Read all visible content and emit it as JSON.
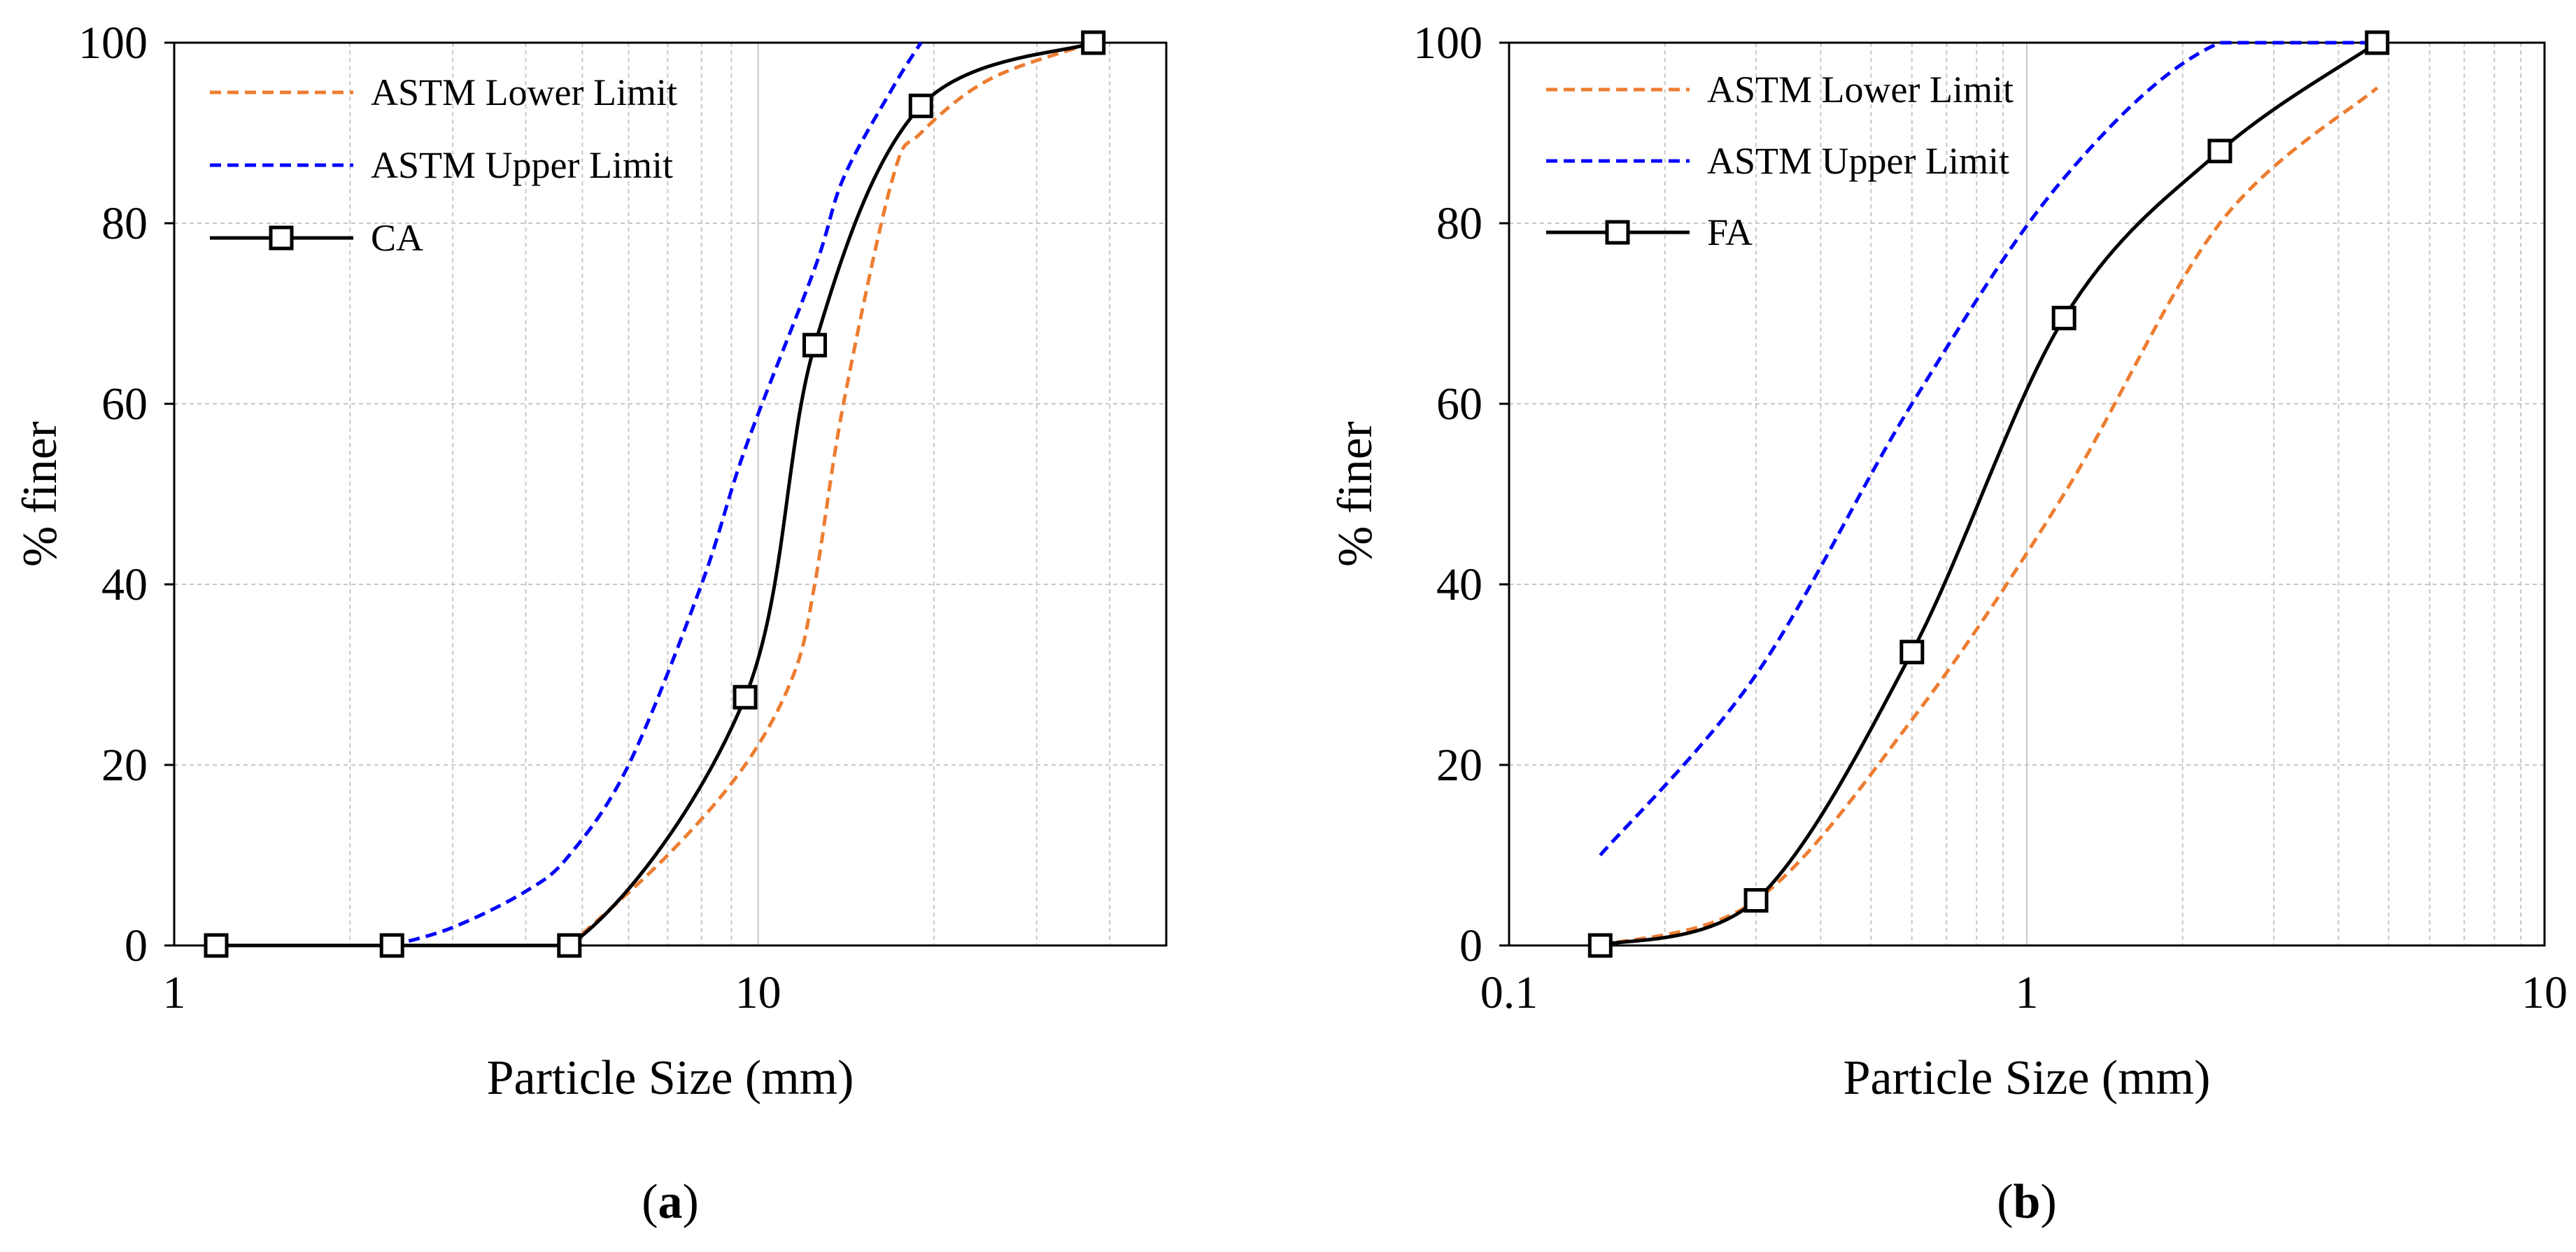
{
  "colors": {
    "lower_limit": "#ED7D31",
    "upper_limit": "#0000FF",
    "measured": "#000000",
    "grid": "#C8C8C8",
    "frame": "#000000"
  },
  "chart_data": [
    {
      "id": "a",
      "type": "line",
      "panel_label": "a",
      "xlabel": "Particle Size (mm)",
      "ylabel": "% finer",
      "xscale": "log",
      "xlim": [
        1,
        50
      ],
      "ylim": [
        0,
        100
      ],
      "x_ticks": [
        1,
        10
      ],
      "x_tick_labels": [
        "1",
        "10"
      ],
      "y_ticks": [
        0,
        20,
        40,
        60,
        80,
        100
      ],
      "y_tick_labels": [
        "0",
        "20",
        "40",
        "60",
        "80",
        "100"
      ],
      "grid": true,
      "legend_position": "top-left",
      "series": [
        {
          "name": "ASTM Lower Limit",
          "style": "dashed",
          "color": "#ED7D31",
          "x": [
            4.75,
            7,
            9.5,
            11.5,
            12.5,
            14,
            17,
            19,
            25,
            37.5
          ],
          "y": [
            0,
            10,
            20,
            30,
            40,
            60,
            85,
            90,
            96,
            100
          ]
        },
        {
          "name": "ASTM Upper Limit",
          "style": "dashed",
          "color": "#0000FF",
          "x": [
            2.36,
            3,
            4,
            4.75,
            6,
            8,
            9.5,
            12.5,
            14,
            17,
            19
          ],
          "y": [
            0,
            2,
            6,
            10,
            20,
            40,
            55,
            75,
            85,
            95,
            100
          ]
        },
        {
          "name": "CA",
          "style": "solid",
          "color": "#000000",
          "marker": "square",
          "x": [
            1.18,
            2.36,
            4.75,
            9.5,
            12.5,
            19,
            37.5
          ],
          "y": [
            0,
            0,
            0,
            27.5,
            66.5,
            93,
            100
          ]
        }
      ]
    },
    {
      "id": "b",
      "type": "line",
      "panel_label": "b",
      "xlabel": "Particle Size (mm)",
      "ylabel": "% finer",
      "xscale": "log",
      "xlim": [
        0.1,
        10
      ],
      "ylim": [
        0,
        100
      ],
      "x_ticks": [
        0.1,
        1,
        10
      ],
      "x_tick_labels": [
        "0.1",
        "1",
        "10"
      ],
      "y_ticks": [
        0,
        20,
        40,
        60,
        80,
        100
      ],
      "y_tick_labels": [
        "0",
        "20",
        "40",
        "60",
        "80",
        "100"
      ],
      "grid": true,
      "legend_position": "top-left",
      "series": [
        {
          "name": "ASTM Lower Limit",
          "style": "dashed",
          "color": "#ED7D31",
          "x": [
            0.15,
            0.3,
            0.6,
            1.18,
            2.36,
            4.75
          ],
          "y": [
            0,
            5,
            25,
            50,
            80,
            95
          ]
        },
        {
          "name": "ASTM Upper Limit",
          "style": "dashed",
          "color": "#0000FF",
          "x": [
            0.15,
            0.3,
            0.6,
            1.18,
            2.36,
            4.75
          ],
          "y": [
            10,
            30,
            60,
            85,
            100,
            100
          ]
        },
        {
          "name": "FA",
          "style": "solid",
          "color": "#000000",
          "marker": "square",
          "x": [
            0.15,
            0.3,
            0.6,
            1.18,
            2.36,
            4.75
          ],
          "y": [
            0,
            5,
            32.5,
            69.5,
            88,
            100
          ]
        }
      ]
    }
  ]
}
